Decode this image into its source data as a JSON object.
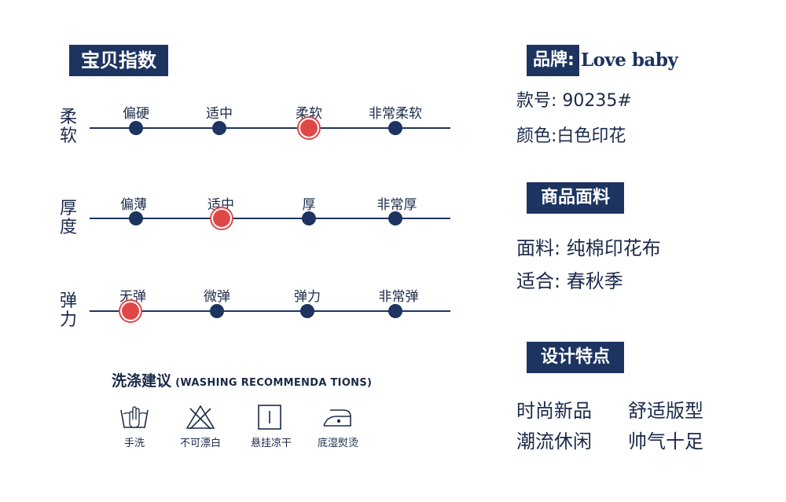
{
  "index_title": "宝贝指数",
  "rows": [
    {
      "label": "柔软",
      "options": [
        "偏硬",
        "适中",
        "柔软",
        "非常柔软"
      ],
      "selected": "柔软"
    },
    {
      "label": "厚度",
      "options": [
        "偏薄",
        "适中",
        "厚",
        "非常厚"
      ],
      "selected": "适中"
    },
    {
      "label": "弹力",
      "options": [
        "无弹",
        "微弹",
        "弹力",
        "非常弹"
      ],
      "selected": "无弹"
    }
  ],
  "washing": {
    "title": "洗涤建议",
    "subtitle": "(WASHING RECOMMENDA TIONS)",
    "icons": [
      {
        "label": "手洗",
        "icon": "hand-wash-icon"
      },
      {
        "label": "不可漂白",
        "icon": "no-bleach-icon"
      },
      {
        "label": "悬挂凉干",
        "icon": "hang-dry-icon"
      },
      {
        "label": "底湿熨烫",
        "icon": "iron-icon"
      }
    ]
  },
  "brand": {
    "label": "品牌:",
    "value": "Love baby"
  },
  "style_no": "款号: 90235#",
  "color_line": "颜色:白色印花",
  "fabric_section": {
    "title": "商品面料",
    "material": "面料: 纯棉印花布",
    "season": "适合: 春秋季"
  },
  "design_section": {
    "title": "设计特点",
    "features": [
      "时尚新品",
      "舒适版型",
      "潮流休闲",
      "帅气十足"
    ]
  },
  "colors": {
    "navy": "#1d3461",
    "accent_red": "#e04848",
    "text": "#1b2a4a"
  }
}
